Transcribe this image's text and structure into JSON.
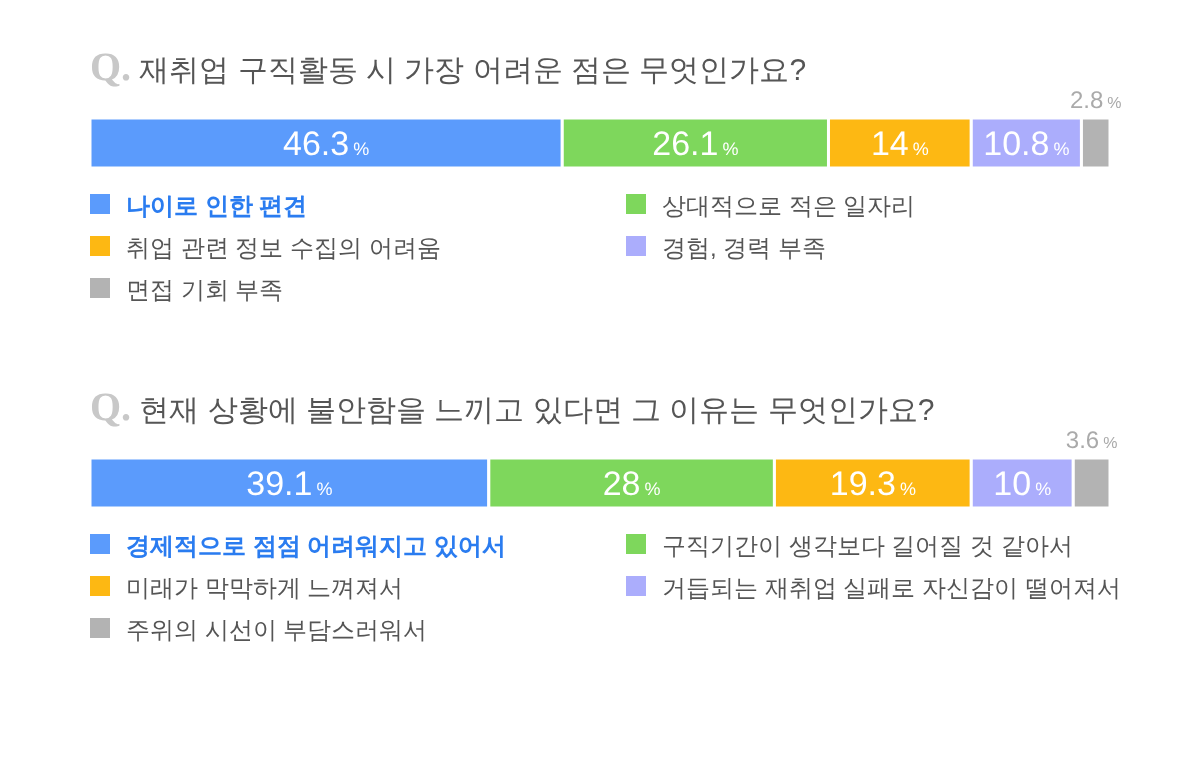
{
  "chart_data": [
    {
      "type": "bar",
      "orientation": "horizontal",
      "stacked": true,
      "title": "Q. 재취업 구직활동 시 가장 어려운 점은 무엇인가요?",
      "categories": [
        null
      ],
      "legend": "bottom",
      "series": [
        {
          "name": "나이로 인한 편견",
          "color": "#5b9bfc",
          "values": [
            46.3
          ],
          "value_labels": [
            "46.3%"
          ]
        },
        {
          "name": "상대적으로 적은 일자리",
          "color": "#7ed75c",
          "values": [
            26.1
          ],
          "value_labels": [
            "26.1%"
          ]
        },
        {
          "name": "취업 관련 정보 수집의 어려움",
          "color": "#fdb813",
          "values": [
            14
          ],
          "value_labels": [
            "14%"
          ]
        },
        {
          "name": "경험, 경력 부족",
          "color": "#abadfc",
          "values": [
            10.8
          ],
          "value_labels": [
            "10.8%"
          ]
        },
        {
          "name": "면접 기회 부족",
          "color": "#b3b3b3",
          "values": [
            2.8
          ],
          "value_labels": [
            "2.8%"
          ]
        }
      ]
    },
    {
      "type": "bar",
      "orientation": "horizontal",
      "stacked": true,
      "title": "Q. 현재 상황에 불안함을 느끼고 있다면 그 이유는 무엇인가요?",
      "categories": [
        null
      ],
      "legend": "bottom",
      "series": [
        {
          "name": "경제적으로 점점 어려워지고 있어서",
          "color": "#5b9bfc",
          "values": [
            39.1
          ],
          "value_labels": [
            "39.1%"
          ]
        },
        {
          "name": "구직기간이 생각보다 길어질 것 같아서",
          "color": "#7ed75c",
          "values": [
            28
          ],
          "value_labels": [
            "28%"
          ]
        },
        {
          "name": "미래가 막막하게 느껴져서",
          "color": "#fdb813",
          "values": [
            19.3
          ],
          "value_labels": [
            "19.3%"
          ]
        },
        {
          "name": "거듭되는 재취업 실패로 자신감이 떨어져서",
          "color": "#abadfc",
          "values": [
            10
          ],
          "value_labels": [
            "10%"
          ]
        },
        {
          "name": "주위의 시선이 부담스러워서",
          "color": "#b3b3b3",
          "values": [
            3.6
          ],
          "value_labels": [
            "3.6%"
          ]
        }
      ]
    }
  ]
}
